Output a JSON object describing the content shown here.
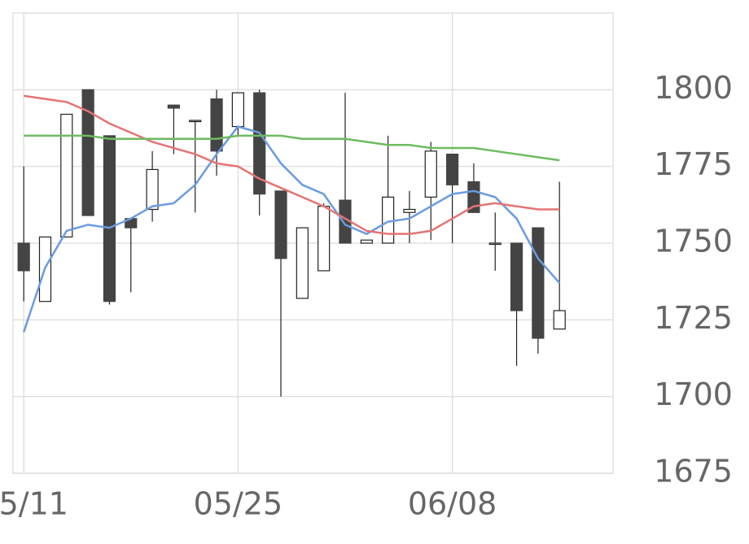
{
  "chart_data": {
    "type": "candlestick",
    "categories": [
      "05/11",
      null,
      null,
      null,
      null,
      null,
      null,
      null,
      null,
      null,
      "05/25",
      null,
      null,
      null,
      null,
      null,
      null,
      null,
      null,
      null,
      "06/08",
      null,
      null,
      null,
      null,
      null
    ],
    "open": [
      1750,
      1731,
      1752,
      1800,
      1785,
      1758,
      1761,
      1795,
      1790,
      1797,
      1788,
      1799,
      1767,
      1732,
      1741,
      1764,
      1750,
      1750,
      1760,
      1765,
      1779,
      1770,
      1750,
      1750,
      1755,
      1722
    ],
    "high": [
      1775,
      1752,
      1792,
      1800,
      1785,
      1758,
      1780,
      1795,
      1790,
      1800,
      1799,
      1800,
      1767,
      1755,
      1763,
      1799,
      1751,
      1785,
      1767,
      1783,
      1779,
      1776,
      1760,
      1750,
      1755,
      1770
    ],
    "low": [
      1731,
      1731,
      1752,
      1759,
      1730,
      1734,
      1757,
      1779,
      1760,
      1772,
      1785,
      1759,
      1700,
      1732,
      1741,
      1750,
      1750,
      1750,
      1750,
      1751,
      1750,
      1760,
      1741,
      1710,
      1714,
      1722
    ],
    "close": [
      1741,
      1752,
      1792,
      1759,
      1731,
      1755,
      1774,
      1794,
      1790,
      1780,
      1799,
      1766,
      1745,
      1755,
      1762,
      1750,
      1751,
      1765,
      1761,
      1780,
      1769,
      1760,
      1750,
      1728,
      1719,
      1728
    ],
    "up_color": "#ffffff",
    "down_color": "#444444",
    "wick_color": "#222222",
    "series": [
      {
        "color": "#6a9be0",
        "values": [
          1721,
          1742,
          1754,
          1756,
          1755,
          1758,
          1762,
          1763,
          1769,
          1779,
          1788,
          1786,
          1776,
          1769,
          1766,
          1756,
          1753,
          1757,
          1758,
          1762,
          1766,
          1767,
          1765,
          1758,
          1745,
          1737
        ]
      },
      {
        "color": "#e57373",
        "values": [
          1798,
          1797,
          1796,
          1793,
          1789,
          1786,
          1783,
          1781,
          1779,
          1776,
          1775,
          1771,
          1768,
          1765,
          1762,
          1758,
          1754,
          1753,
          1753,
          1754,
          1758,
          1762,
          1763,
          1762,
          1761,
          1761
        ]
      },
      {
        "color": "#6dbb5f",
        "values": [
          1785,
          1785,
          1785,
          1785,
          1784,
          1784,
          1784,
          1784,
          1784,
          1784,
          1785,
          1785,
          1785,
          1784,
          1784,
          1784,
          1783,
          1782,
          1782,
          1781,
          1781,
          1781,
          1780,
          1779,
          1778,
          1777
        ]
      }
    ],
    "ylim": [
      1675,
      1825
    ],
    "yticks": [
      1675,
      1700,
      1725,
      1750,
      1775,
      1800
    ],
    "grid": true
  }
}
